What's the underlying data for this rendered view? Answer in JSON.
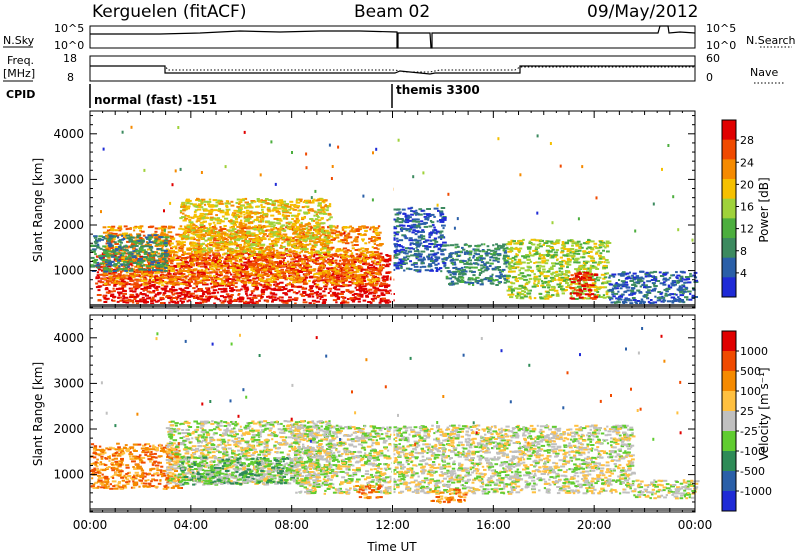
{
  "header": {
    "station": "Kerguelen (fitACF)",
    "beam": "Beam 02",
    "date": "09/May/2012"
  },
  "side_labels": {
    "nsky": "N.Sky",
    "freq": "Freq.",
    "freq_unit": "[MHz]",
    "cpid": "CPID",
    "nsearch": "N.Search",
    "nave": "Nave"
  },
  "top_panels": {
    "nsky_ticks": [
      "10^5",
      "10^0"
    ],
    "nsearch_ticks": [
      "10^5",
      "10^0"
    ],
    "freq_ticks": [
      "18",
      "8"
    ],
    "nave_ticks": [
      "60",
      "0"
    ]
  },
  "cpid": {
    "seg1": "normal (fast) -151",
    "seg2": "themis 3300"
  },
  "colors": {
    "power": [
      "#1f2bd6",
      "#2a5fa8",
      "#3c8a5f",
      "#4cae3e",
      "#9fd23a",
      "#f5c000",
      "#f58a00",
      "#f04a00",
      "#e00000"
    ],
    "velocity": [
      "#e00000",
      "#f04a00",
      "#f58a00",
      "#ffc040",
      "#c0c0c0",
      "#60cc30",
      "#2e8b57",
      "#2a5fa8",
      "#1f2bd6"
    ]
  },
  "chart_data": [
    {
      "type": "heatmap",
      "name": "Power",
      "ylabel": "Slant Range [km]",
      "xlabel": "Time UT",
      "x_ticks": [
        "00:00",
        "04:00",
        "08:00",
        "12:00",
        "16:00",
        "20:00",
        "00:00"
      ],
      "y_ticks": [
        "1000",
        "2000",
        "3000",
        "4000"
      ],
      "ylim": [
        180,
        4500
      ],
      "colorbar": {
        "label": "Power [dB]",
        "ticks": [
          "4",
          "8",
          "12",
          "16",
          "20",
          "24",
          "28"
        ]
      },
      "regions": [
        {
          "t0": 0.2,
          "t1": 12.0,
          "r0": 300,
          "r1": 1400,
          "level": 8
        },
        {
          "t0": 0.5,
          "t1": 11.5,
          "r0": 700,
          "r1": 2000,
          "level": 6
        },
        {
          "t0": 3.5,
          "t1": 9.5,
          "r0": 1400,
          "r1": 2600,
          "level": 5
        },
        {
          "t0": 0.0,
          "t1": 3.0,
          "r0": 1000,
          "r1": 1800,
          "level": 2
        },
        {
          "t0": 12.0,
          "t1": 14.0,
          "r0": 1000,
          "r1": 2400,
          "level": 1
        },
        {
          "t0": 14.0,
          "t1": 16.5,
          "r0": 700,
          "r1": 1600,
          "level": 2
        },
        {
          "t0": 16.5,
          "t1": 20.5,
          "r0": 400,
          "r1": 1700,
          "level": 4
        },
        {
          "t0": 19.0,
          "t1": 20.0,
          "r0": 400,
          "r1": 1000,
          "level": 8
        },
        {
          "t0": 20.5,
          "t1": 24.0,
          "r0": 300,
          "r1": 1000,
          "level": 1
        }
      ]
    },
    {
      "type": "heatmap",
      "name": "Velocity",
      "ylabel": "Slant Range [km]",
      "xlabel": "Time UT",
      "x_ticks": [
        "00:00",
        "04:00",
        "08:00",
        "12:00",
        "16:00",
        "20:00",
        "00:00"
      ],
      "y_ticks": [
        "1000",
        "2000",
        "3000",
        "4000"
      ],
      "ylim": [
        180,
        4500
      ],
      "colorbar": {
        "label": "Velocity [m s⁻¹]",
        "ticks": [
          "1000",
          "500",
          "100",
          "25",
          "-25",
          "-100",
          "-500",
          "-1000"
        ]
      },
      "regions": [
        {
          "t0": 0.0,
          "t1": 3.5,
          "r0": 700,
          "r1": 1700,
          "level": 2
        },
        {
          "t0": 3.0,
          "t1": 9.5,
          "r0": 800,
          "r1": 2200,
          "level": 4
        },
        {
          "t0": 3.5,
          "t1": 8.0,
          "r0": 800,
          "r1": 1400,
          "level": 5
        },
        {
          "t0": 8.0,
          "t1": 12.0,
          "r0": 600,
          "r1": 2100,
          "level": 4
        },
        {
          "t0": 10.5,
          "t1": 11.5,
          "r0": 500,
          "r1": 800,
          "level": 2
        },
        {
          "t0": 12.0,
          "t1": 21.5,
          "r0": 600,
          "r1": 2100,
          "level": 4
        },
        {
          "t0": 13.5,
          "t1": 15.0,
          "r0": 400,
          "r1": 700,
          "level": 2
        },
        {
          "t0": 21.5,
          "t1": 24.0,
          "r0": 500,
          "r1": 900,
          "level": 4
        }
      ]
    }
  ]
}
